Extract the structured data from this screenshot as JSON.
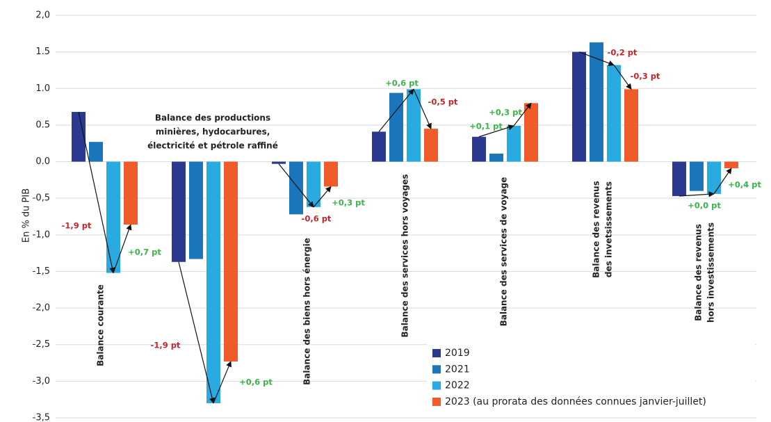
{
  "chart_data": {
    "type": "bar",
    "ylabel": "En % du PIB",
    "categories": [
      [
        "Balance courante"
      ],
      [
        "Balance des productions",
        "minières, hydocarbures,",
        "électricité et pétrole raffiné"
      ],
      [
        "Balance des biens hors énergie"
      ],
      [
        "Balance des services hors voyages"
      ],
      [
        "Balance des services de voyage"
      ],
      [
        "Balance des revenus",
        "des invetsissements"
      ],
      [
        "Balance des revenus",
        "hors investissements"
      ]
    ],
    "series": [
      {
        "name": "2019",
        "color": "#2b3990",
        "values": [
          0.68,
          -1.37,
          -0.03,
          0.41,
          0.34,
          1.5,
          -0.47
        ]
      },
      {
        "name": "2021",
        "color": "#1b75bb",
        "values": [
          0.27,
          -1.33,
          -0.72,
          0.94,
          0.11,
          1.63,
          -0.4
        ]
      },
      {
        "name": "2022",
        "color": "#29abe2",
        "values": [
          -1.52,
          -3.3,
          -0.62,
          0.99,
          0.49,
          1.32,
          -0.44
        ]
      },
      {
        "name": "2023 (au prorata des données connues janvier-juillet)",
        "color": "#f15a29",
        "values": [
          -0.86,
          -2.73,
          -0.34,
          0.45,
          0.8,
          0.99,
          -0.09
        ]
      }
    ],
    "annotations": [
      {
        "text": "-1,9 pt",
        "color": "#c1272d"
      },
      {
        "text": "+0,7 pt",
        "color": "#39b54a"
      },
      {
        "text": "-1,9 pt",
        "color": "#c1272d"
      },
      {
        "text": "+0,6 pt",
        "color": "#39b54a"
      },
      {
        "text": "-0,6 pt",
        "color": "#c1272d"
      },
      {
        "text": "+0,3 pt",
        "color": "#39b54a"
      },
      {
        "text": "+0,6 pt",
        "color": "#39b54a"
      },
      {
        "text": "-0,5 pt",
        "color": "#c1272d"
      },
      {
        "text": "+0,1 pt",
        "color": "#39b54a"
      },
      {
        "text": "+0,3 pt",
        "color": "#39b54a"
      },
      {
        "text": "-0,2 pt",
        "color": "#c1272d"
      },
      {
        "text": "-0,3 pt",
        "color": "#c1272d"
      },
      {
        "text": "+0,0 pt",
        "color": "#39b54a"
      },
      {
        "text": "+0,4 pt",
        "color": "#39b54a"
      }
    ],
    "ylim": [
      -3.5,
      2.0
    ],
    "yticks": [
      {
        "value": 2.0,
        "label": "2,0"
      },
      1.5,
      {
        "value": 1.0,
        "label": "1.0"
      },
      0.5,
      {
        "value": 0.0,
        "label": "0.0"
      },
      {
        "value": -0.5,
        "label": "-0,5"
      },
      {
        "value": -1.0,
        "label": "-1,0"
      },
      {
        "value": -1.5,
        "label": "-1,5"
      },
      {
        "value": -2.0,
        "label": "-2,0"
      },
      {
        "value": -2.5,
        "label": "-2,5"
      },
      {
        "value": -3.0,
        "label": "-3,0"
      },
      {
        "value": -3.5,
        "label": "-3,5"
      }
    ],
    "grid": true,
    "legend": "lower right"
  }
}
